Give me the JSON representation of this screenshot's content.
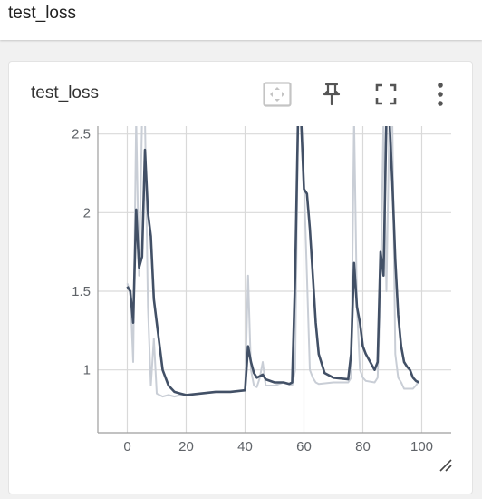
{
  "section": {
    "title": "test_loss"
  },
  "card": {
    "title": "test_loss",
    "toolbar": [
      {
        "name": "fit-domain-icon"
      },
      {
        "name": "pin-icon"
      },
      {
        "name": "fullscreen-icon"
      },
      {
        "name": "more-options-icon"
      }
    ]
  },
  "colors": {
    "smoothed": "#425066",
    "raw": "#c9ced6",
    "grid": "#d9d9d9",
    "axis": "#9e9e9e"
  },
  "chart_data": {
    "type": "line",
    "title": "",
    "xlabel": "",
    "ylabel": "",
    "xlim": [
      -10,
      110
    ],
    "ylim": [
      0.6,
      2.55
    ],
    "x_ticks": [
      0,
      20,
      40,
      60,
      80,
      100
    ],
    "y_ticks": [
      1,
      1.5,
      2,
      2.5
    ],
    "series": [
      {
        "role": "raw",
        "points": [
          [
            0,
            1.55
          ],
          [
            1,
            1.5
          ],
          [
            2,
            1.05
          ],
          [
            3,
            2.6
          ],
          [
            4,
            1.6
          ],
          [
            5,
            2.6
          ],
          [
            6,
            2.6
          ],
          [
            7,
            1.4
          ],
          [
            8,
            0.9
          ],
          [
            9,
            1.2
          ],
          [
            10,
            0.85
          ],
          [
            12,
            0.83
          ],
          [
            14,
            0.84
          ],
          [
            16,
            0.83
          ],
          [
            18,
            0.84
          ],
          [
            20,
            0.84
          ],
          [
            25,
            0.85
          ],
          [
            30,
            0.86
          ],
          [
            35,
            0.86
          ],
          [
            40,
            0.87
          ],
          [
            41,
            1.6
          ],
          [
            42,
            1.0
          ],
          [
            43,
            0.9
          ],
          [
            44,
            0.89
          ],
          [
            45,
            0.95
          ],
          [
            46,
            1.05
          ],
          [
            47,
            0.9
          ],
          [
            50,
            0.9
          ],
          [
            53,
            0.92
          ],
          [
            55,
            0.91
          ],
          [
            56,
            0.9
          ],
          [
            57,
            1.0
          ],
          [
            58,
            2.6
          ],
          [
            59,
            2.6
          ],
          [
            60,
            2.2
          ],
          [
            61,
            1.6
          ],
          [
            62,
            1.0
          ],
          [
            63,
            0.95
          ],
          [
            64,
            0.92
          ],
          [
            65,
            0.91
          ],
          [
            70,
            0.92
          ],
          [
            75,
            0.92
          ],
          [
            76,
            0.95
          ],
          [
            77,
            2.6
          ],
          [
            78,
            1.4
          ],
          [
            79,
            1.0
          ],
          [
            80,
            0.95
          ],
          [
            81,
            0.93
          ],
          [
            84,
            0.92
          ],
          [
            85,
            0.95
          ],
          [
            86,
            1.5
          ],
          [
            87,
            2.6
          ],
          [
            88,
            1.5
          ],
          [
            89,
            2.6
          ],
          [
            90,
            2.6
          ],
          [
            91,
            1.1
          ],
          [
            92,
            0.95
          ],
          [
            93,
            0.92
          ],
          [
            94,
            0.88
          ],
          [
            95,
            0.88
          ],
          [
            96,
            0.88
          ],
          [
            97,
            0.88
          ],
          [
            98,
            0.9
          ],
          [
            99,
            0.93
          ]
        ]
      },
      {
        "role": "smoothed",
        "points": [
          [
            0,
            1.53
          ],
          [
            1,
            1.5
          ],
          [
            2,
            1.3
          ],
          [
            3,
            2.02
          ],
          [
            4,
            1.65
          ],
          [
            5,
            1.72
          ],
          [
            6,
            2.4
          ],
          [
            7,
            2.0
          ],
          [
            8,
            1.85
          ],
          [
            9,
            1.45
          ],
          [
            10,
            1.3
          ],
          [
            12,
            1.0
          ],
          [
            14,
            0.9
          ],
          [
            16,
            0.86
          ],
          [
            18,
            0.85
          ],
          [
            20,
            0.84
          ],
          [
            25,
            0.85
          ],
          [
            30,
            0.86
          ],
          [
            35,
            0.86
          ],
          [
            40,
            0.87
          ],
          [
            41,
            1.15
          ],
          [
            42,
            1.05
          ],
          [
            43,
            0.98
          ],
          [
            44,
            0.95
          ],
          [
            45,
            0.96
          ],
          [
            46,
            0.97
          ],
          [
            47,
            0.94
          ],
          [
            50,
            0.92
          ],
          [
            53,
            0.92
          ],
          [
            55,
            0.91
          ],
          [
            56,
            0.92
          ],
          [
            57,
            1.6
          ],
          [
            58,
            2.6
          ],
          [
            59,
            2.6
          ],
          [
            60,
            2.15
          ],
          [
            61,
            2.12
          ],
          [
            62,
            1.9
          ],
          [
            63,
            1.6
          ],
          [
            64,
            1.3
          ],
          [
            65,
            1.1
          ],
          [
            67,
            0.98
          ],
          [
            70,
            0.95
          ],
          [
            75,
            0.94
          ],
          [
            76,
            1.1
          ],
          [
            77,
            1.68
          ],
          [
            78,
            1.4
          ],
          [
            79,
            1.3
          ],
          [
            80,
            1.15
          ],
          [
            81,
            1.1
          ],
          [
            84,
            1.0
          ],
          [
            85,
            1.05
          ],
          [
            86,
            1.75
          ],
          [
            87,
            1.6
          ],
          [
            88,
            2.6
          ],
          [
            89,
            2.6
          ],
          [
            90,
            2.2
          ],
          [
            91,
            1.7
          ],
          [
            92,
            1.35
          ],
          [
            93,
            1.15
          ],
          [
            94,
            1.05
          ],
          [
            95,
            1.02
          ],
          [
            96,
            1.0
          ],
          [
            97,
            0.95
          ],
          [
            98,
            0.93
          ],
          [
            99,
            0.92
          ]
        ]
      }
    ]
  }
}
